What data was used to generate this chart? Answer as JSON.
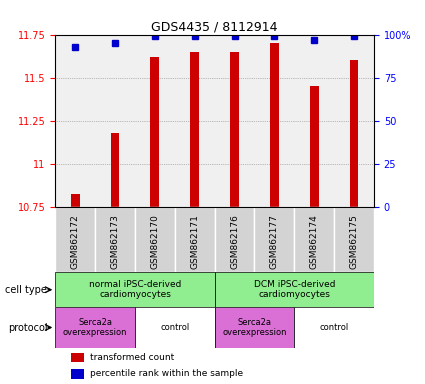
{
  "title": "GDS4435 / 8112914",
  "samples": [
    "GSM862172",
    "GSM862173",
    "GSM862170",
    "GSM862171",
    "GSM862176",
    "GSM862177",
    "GSM862174",
    "GSM862175"
  ],
  "transformed_counts": [
    10.83,
    11.18,
    11.62,
    11.65,
    11.65,
    11.7,
    11.45,
    11.6
  ],
  "percentile_ranks": [
    93,
    95,
    99,
    99,
    99,
    99,
    97,
    99
  ],
  "ylim_left": [
    10.75,
    11.75
  ],
  "yticks_left": [
    10.75,
    11.0,
    11.25,
    11.5,
    11.75
  ],
  "ytick_labels_left": [
    "10.75",
    "11",
    "11.25",
    "11.5",
    "11.75"
  ],
  "ylim_right": [
    0,
    100
  ],
  "yticks_right": [
    0,
    25,
    50,
    75,
    100
  ],
  "ytick_labels_right": [
    "0",
    "25",
    "50",
    "75",
    "100%"
  ],
  "bar_color": "#cc0000",
  "dot_color": "#0000cc",
  "bg_color": "#f0f0f0",
  "cell_type_groups": [
    {
      "label": "normal iPSC-derived\ncardiomyocytes",
      "start": 0,
      "end": 3,
      "color": "#90ee90"
    },
    {
      "label": "DCM iPSC-derived\ncardiomyocytes",
      "start": 4,
      "end": 7,
      "color": "#90ee90"
    }
  ],
  "protocol_groups": [
    {
      "label": "Serca2a\noverexpression",
      "start": 0,
      "end": 1,
      "color": "#da70d6"
    },
    {
      "label": "control",
      "start": 2,
      "end": 3,
      "color": "#da70d6"
    },
    {
      "label": "Serca2a\noverexpression",
      "start": 4,
      "end": 5,
      "color": "#da70d6"
    },
    {
      "label": "control",
      "start": 6,
      "end": 7,
      "color": "#da70d6"
    }
  ],
  "legend_bar_label": "transformed count",
  "legend_dot_label": "percentile rank within the sample",
  "cell_type_label": "cell type",
  "protocol_label": "protocol"
}
